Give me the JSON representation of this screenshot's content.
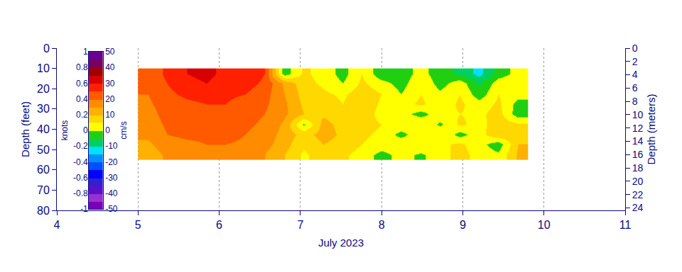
{
  "chart_data": {
    "type": "heatmap",
    "x_label": "July 2023",
    "y_label": "Depth (feet)",
    "y2_label": "Depth (meters)",
    "grid": true,
    "xlim": [
      4,
      11
    ],
    "xticks": [
      4,
      5,
      6,
      7,
      8,
      9,
      10,
      11
    ],
    "ylim": [
      80,
      0
    ],
    "yticks": [
      0,
      10,
      20,
      30,
      40,
      50,
      60,
      70,
      80
    ],
    "y2lim": [
      24.384,
      0
    ],
    "y2ticks": [
      0,
      2,
      4,
      6,
      8,
      10,
      12,
      14,
      16,
      18,
      20,
      22,
      24
    ],
    "x": [
      5.12,
      5.36,
      5.6,
      5.84,
      6.08,
      6.32,
      6.56,
      6.8,
      7.04,
      7.28,
      7.52,
      7.76,
      8.0,
      8.24,
      8.48,
      8.72,
      8.96,
      9.2,
      9.44,
      9.68
    ],
    "y": [
      12.5,
      17.5,
      22.5,
      27.5,
      32.5,
      37.5,
      42.5,
      47.5,
      52.5
    ],
    "z": [
      [
        22,
        26,
        30,
        32,
        28,
        29,
        25,
        -3,
        6,
        3,
        -2,
        5,
        -4,
        -3,
        2,
        -3,
        -6,
        -12,
        -3,
        2
      ],
      [
        22,
        25,
        28,
        30,
        27,
        27,
        24,
        14,
        7,
        4,
        0,
        6,
        2,
        -2,
        4,
        -2,
        3,
        -6,
        3,
        5
      ],
      [
        20,
        24,
        26,
        27,
        26,
        25,
        22,
        15,
        8,
        6,
        4,
        8,
        5,
        0,
        5,
        1,
        5,
        -3,
        5,
        2
      ],
      [
        19,
        23,
        24,
        25,
        25,
        23,
        21,
        16,
        9,
        8,
        5,
        9,
        4,
        3,
        6,
        2,
        6,
        2,
        6,
        -2
      ],
      [
        18,
        22,
        23,
        24,
        24,
        22,
        20,
        16,
        10,
        9,
        6,
        8,
        3,
        2,
        -2,
        3,
        5,
        4,
        7,
        -3
      ],
      [
        17,
        21,
        22,
        22,
        23,
        21,
        19,
        14,
        -1,
        12,
        8,
        7,
        5,
        4,
        5,
        -1,
        6,
        3,
        8,
        6
      ],
      [
        16,
        20,
        21,
        21,
        22,
        20,
        18,
        13,
        8,
        12,
        9,
        6,
        4,
        -2,
        4,
        5,
        -2,
        3,
        9,
        8
      ],
      [
        14,
        18,
        19,
        20,
        20,
        19,
        17,
        12,
        6,
        10,
        8,
        5,
        3,
        4,
        5,
        4,
        6,
        2,
        -3,
        10
      ],
      [
        12,
        16,
        17,
        18,
        18,
        17,
        15,
        10,
        4,
        8,
        6,
        3,
        -2,
        2,
        -1,
        3,
        7,
        3,
        1,
        11
      ]
    ],
    "colorbar": {
      "title": "cm/s",
      "range": [
        -50,
        50
      ],
      "ticks": [
        50,
        40,
        30,
        20,
        10,
        0,
        -10,
        -20,
        -30,
        -40,
        -50
      ]
    },
    "colorbar2": {
      "title": "knots",
      "range": [
        -1,
        1
      ],
      "ticks": [
        1,
        0.8,
        0.6,
        0.4,
        0.2,
        0,
        -0.2,
        -0.4,
        -0.6,
        -0.8,
        -1
      ]
    }
  }
}
